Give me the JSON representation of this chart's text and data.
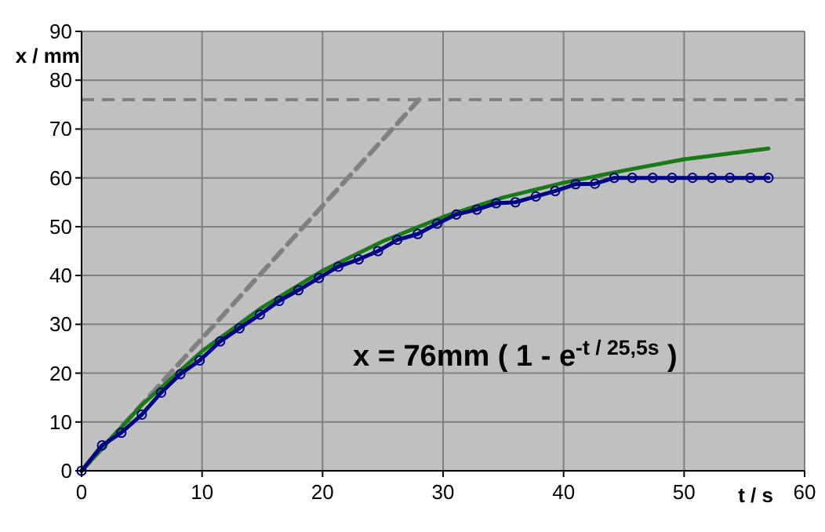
{
  "chart_data": {
    "type": "line",
    "xlabel": "t / s",
    "ylabel": "x / mm",
    "xlim": [
      0,
      60
    ],
    "xticks": [
      0,
      10,
      20,
      30,
      40,
      50,
      60
    ],
    "ylim": [
      0,
      90
    ],
    "yticks": [
      0,
      10,
      20,
      30,
      40,
      50,
      60,
      70,
      80,
      90
    ],
    "grid": true,
    "series": [
      {
        "color": "#808080",
        "line_style": "dashed",
        "marker": "none",
        "x": [
          0,
          28
        ],
        "values": [
          0,
          76
        ]
      },
      {
        "color": "#1a7a1a",
        "marker": "none",
        "x": [
          0,
          5,
          10,
          15,
          20,
          25,
          30,
          35,
          40,
          45,
          50,
          57
        ],
        "values": [
          0,
          13.5,
          24.5,
          33.5,
          41,
          47,
          52,
          56,
          59,
          61.5,
          63.8,
          66
        ]
      },
      {
        "color": "#000080",
        "marker": "circle",
        "x": [
          0,
          1.7,
          3.3,
          5,
          6.6,
          8.2,
          9.8,
          11.5,
          13.1,
          14.8,
          16.4,
          18,
          19.7,
          21.3,
          23,
          24.6,
          26.2,
          27.9,
          29.5,
          31.1,
          32.8,
          34.4,
          36,
          37.7,
          39.3,
          41,
          42.6,
          44.2,
          45.7,
          47.4,
          49,
          50.7,
          52.3,
          53.8,
          55.5,
          57
        ],
        "values": [
          0,
          5.2,
          7.8,
          11.5,
          16,
          19.8,
          22.6,
          26.5,
          29.2,
          32,
          34.8,
          37,
          39.5,
          41.8,
          43.3,
          45,
          47.3,
          48.5,
          50.6,
          52.5,
          53.5,
          54.8,
          55,
          56.2,
          57.3,
          58.7,
          58.8,
          60,
          60,
          60,
          60,
          60,
          60,
          60,
          60,
          60
        ]
      }
    ],
    "ref_lines": [
      {
        "axis": "y",
        "value": 76,
        "color": "#808080",
        "line_style": "dashed"
      }
    ],
    "annotations": [
      "x = 76mm ( 1 - e$^{-t / 25,5s}$ )"
    ]
  }
}
